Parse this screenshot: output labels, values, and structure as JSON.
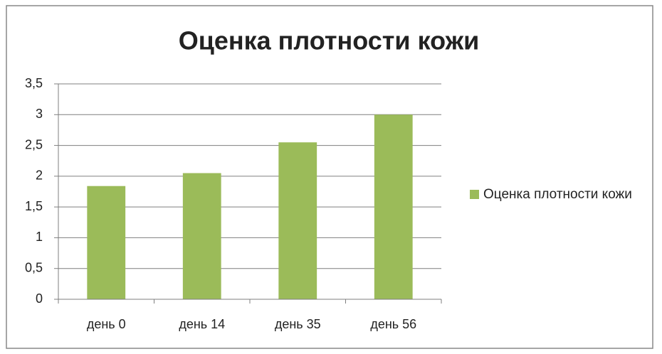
{
  "chart_data": {
    "type": "bar",
    "title": "Оценка плотности кожи",
    "categories": [
      "день 0",
      "день 14",
      "день 35",
      "день 56"
    ],
    "series": [
      {
        "name": "Оценка плотности кожи",
        "color": "#9bbb59",
        "values": [
          1.84,
          2.05,
          2.55,
          3.0
        ]
      }
    ],
    "ylim": [
      0,
      3.5
    ],
    "yticks": [
      0,
      {
        "value": 0.5,
        "label": "0,5"
      },
      1,
      {
        "value": 1.5,
        "label": "1,5"
      },
      2,
      {
        "value": 2.5,
        "label": "2,5"
      },
      3,
      {
        "value": 3.5,
        "label": "3,5"
      }
    ],
    "grid": true,
    "legend": "right"
  }
}
